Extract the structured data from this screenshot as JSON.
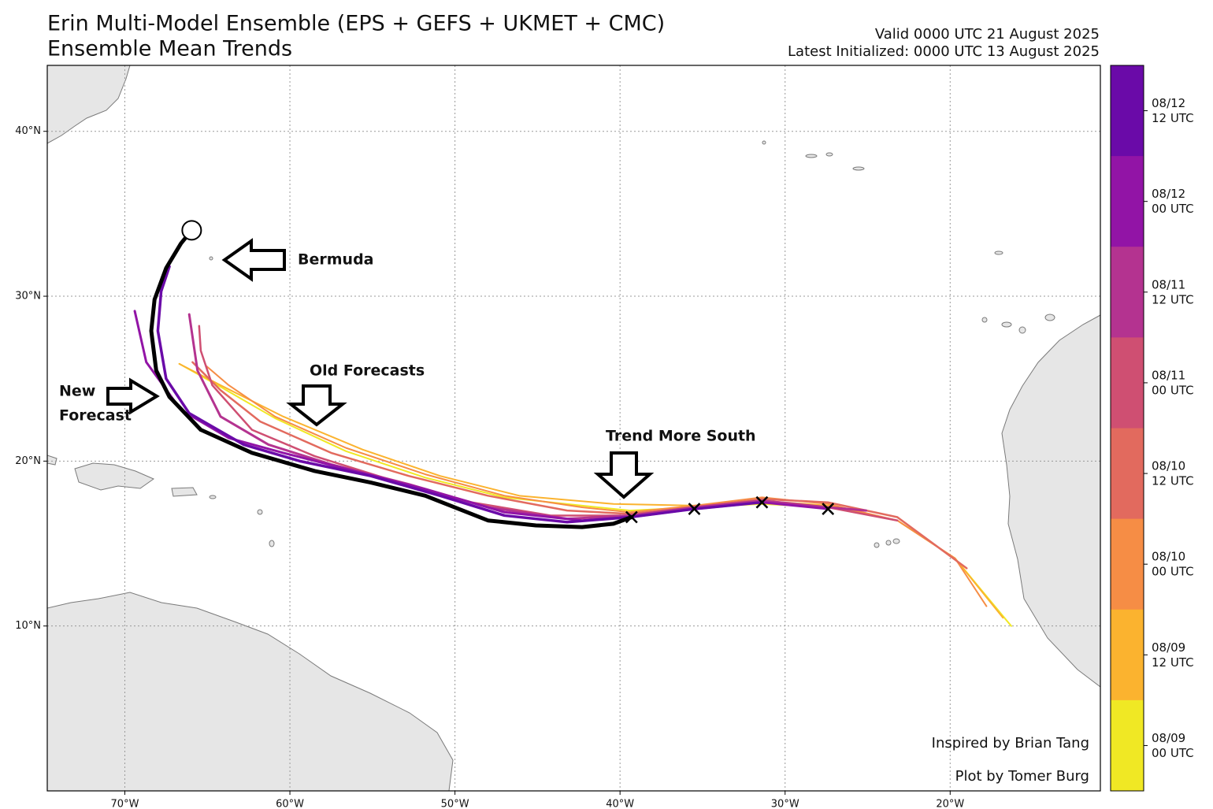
{
  "chart_data": {
    "type": "track",
    "title": "Erin Multi-Model Ensemble (EPS + GEFS + UKMET + CMC)",
    "subtitle": "Ensemble Mean Trends",
    "valid": "Valid 0000 UTC 21 August 2025",
    "initialized": "Latest Initialized: 0000 UTC 13 August 2025",
    "xlim": [
      -74.7,
      -10.9
    ],
    "ylim": [
      0,
      44
    ],
    "xticks": [
      {
        "value": -70,
        "label": "70°W"
      },
      {
        "value": -60,
        "label": "60°W"
      },
      {
        "value": -50,
        "label": "50°W"
      },
      {
        "value": -40,
        "label": "40°W"
      },
      {
        "value": -30,
        "label": "30°W"
      },
      {
        "value": -20,
        "label": "20°W"
      }
    ],
    "yticks": [
      {
        "value": 10,
        "label": "10°N"
      },
      {
        "value": 20,
        "label": "20°N"
      },
      {
        "value": 30,
        "label": "30°N"
      },
      {
        "value": 40,
        "label": "40°N"
      }
    ],
    "grid": true,
    "series": [
      {
        "color": "#f0e824",
        "width": 2,
        "x": [
          -16.3,
          -19.7,
          -23.2,
          -27.4,
          -31.4,
          -35.5,
          -39.4,
          -42.3,
          -47.0,
          -51.8,
          -56.6,
          -60.9,
          -64.2,
          -66.7
        ],
        "y": [
          10.0,
          14.1,
          16.4,
          17.2,
          17.4,
          17.2,
          17.0,
          17.3,
          17.8,
          19.0,
          20.6,
          22.6,
          24.5,
          25.9
        ]
      },
      {
        "color": "#fbb32f",
        "width": 2,
        "x": [
          -16.8,
          -19.7,
          -23.2,
          -27.4,
          -31.4,
          -35.5,
          -40.4,
          -46.1,
          -50.9,
          -55.6,
          -60.4,
          -64.2,
          -66.7
        ],
        "y": [
          10.5,
          14.1,
          16.4,
          17.3,
          17.6,
          17.3,
          17.4,
          17.9,
          19.1,
          20.7,
          22.7,
          24.6,
          25.9
        ]
      },
      {
        "color": "#f68d45",
        "width": 2,
        "x": [
          -17.8,
          -19.7,
          -23.2,
          -27.4,
          -31.4,
          -35.5,
          -39.4,
          -42.3,
          -47.0,
          -51.8,
          -56.6,
          -60.9,
          -63.7,
          -65.1
        ],
        "y": [
          11.2,
          14.1,
          16.4,
          17.4,
          17.8,
          17.3,
          16.9,
          17.2,
          17.9,
          19.2,
          20.8,
          22.7,
          24.6,
          25.8
        ]
      },
      {
        "color": "#e26a5e",
        "width": 2.5,
        "x": [
          -19.0,
          -23.2,
          -27.4,
          -31.4,
          -35.5,
          -39.4,
          -43.2,
          -48.0,
          -52.8,
          -57.5,
          -61.8,
          -64.2,
          -65.9
        ],
        "y": [
          13.5,
          16.6,
          17.5,
          17.7,
          17.2,
          16.8,
          17.0,
          17.9,
          19.1,
          20.5,
          22.4,
          24.3,
          26.0
        ]
      },
      {
        "color": "#cf4f72",
        "width": 2.5,
        "x": [
          -23.2,
          -27.4,
          -31.4,
          -35.5,
          -39.4,
          -44.2,
          -49.0,
          -53.7,
          -58.5,
          -62.3,
          -64.7,
          -65.4,
          -65.5
        ],
        "y": [
          16.4,
          17.2,
          17.6,
          17.2,
          16.7,
          16.7,
          17.5,
          18.8,
          20.3,
          21.9,
          24.6,
          26.7,
          28.2
        ]
      },
      {
        "color": "#b43390",
        "width": 3,
        "x": [
          -25.1,
          -27.4,
          -31.4,
          -35.5,
          -39.4,
          -43.2,
          -48.0,
          -52.8,
          -57.5,
          -61.3,
          -64.2,
          -65.6,
          -66.1
        ],
        "y": [
          17.0,
          17.2,
          17.6,
          17.2,
          16.7,
          16.5,
          17.2,
          18.6,
          19.8,
          21.0,
          22.7,
          25.5,
          28.9
        ]
      },
      {
        "color": "#9214a6",
        "width": 3,
        "x": [
          -27.4,
          -31.4,
          -35.5,
          -39.4,
          -42.3,
          -47.0,
          -51.8,
          -56.1,
          -60.4,
          -63.7,
          -66.6,
          -68.7,
          -69.4
        ],
        "y": [
          17.1,
          17.5,
          17.1,
          16.6,
          16.4,
          16.9,
          18.3,
          19.4,
          20.5,
          21.4,
          23.1,
          26.0,
          29.1
        ]
      },
      {
        "color": "#6a0aa8",
        "width": 3.5,
        "x": [
          -31.4,
          -35.5,
          -39.4,
          -43.2,
          -47.0,
          -50.9,
          -55.1,
          -59.4,
          -62.8,
          -66.1,
          -67.5,
          -68.0,
          -67.8,
          -67.3
        ],
        "y": [
          17.5,
          17.1,
          16.6,
          16.3,
          16.7,
          17.9,
          19.1,
          20.0,
          21.0,
          22.9,
          25.0,
          27.9,
          30.3,
          31.8
        ]
      },
      {
        "color": "#000000",
        "width": 5,
        "x": [
          -39.3,
          -40.4,
          -42.3,
          -45.1,
          -48.0,
          -51.8,
          -55.1,
          -58.5,
          -62.3,
          -65.4,
          -67.3,
          -68.1,
          -68.4,
          -68.2,
          -67.5,
          -66.6,
          -65.95
        ],
        "y": [
          16.6,
          16.2,
          16.0,
          16.1,
          16.4,
          17.9,
          18.7,
          19.4,
          20.5,
          21.9,
          23.9,
          25.5,
          27.9,
          29.8,
          31.7,
          33.2,
          34.0
        ]
      }
    ],
    "markers": {
      "x": [
        -39.3,
        -35.5,
        -31.4,
        -27.4
      ],
      "y": [
        16.6,
        17.1,
        17.5,
        17.1
      ]
    },
    "end_marker": {
      "x": -65.95,
      "y": 34.0
    },
    "annotations": [
      "Bermuda",
      "Old Forecasts",
      "Trend More South",
      "New",
      "Forecast"
    ],
    "colorbar": {
      "colors": [
        "#6a0aa8",
        "#9214a6",
        "#b43390",
        "#cf4f72",
        "#e26a5e",
        "#f68d45",
        "#fbb32f",
        "#f0e824"
      ],
      "labels": [
        [
          "08/12",
          "12 UTC"
        ],
        [
          "08/12",
          "00 UTC"
        ],
        [
          "08/11",
          "12 UTC"
        ],
        [
          "08/11",
          "00 UTC"
        ],
        [
          "08/10",
          "12 UTC"
        ],
        [
          "08/10",
          "00 UTC"
        ],
        [
          "08/09",
          "12 UTC"
        ],
        [
          "08/09",
          "00 UTC"
        ]
      ]
    },
    "credits": [
      "Inspired by Brian Tang",
      "Plot by Tomer Burg"
    ]
  }
}
